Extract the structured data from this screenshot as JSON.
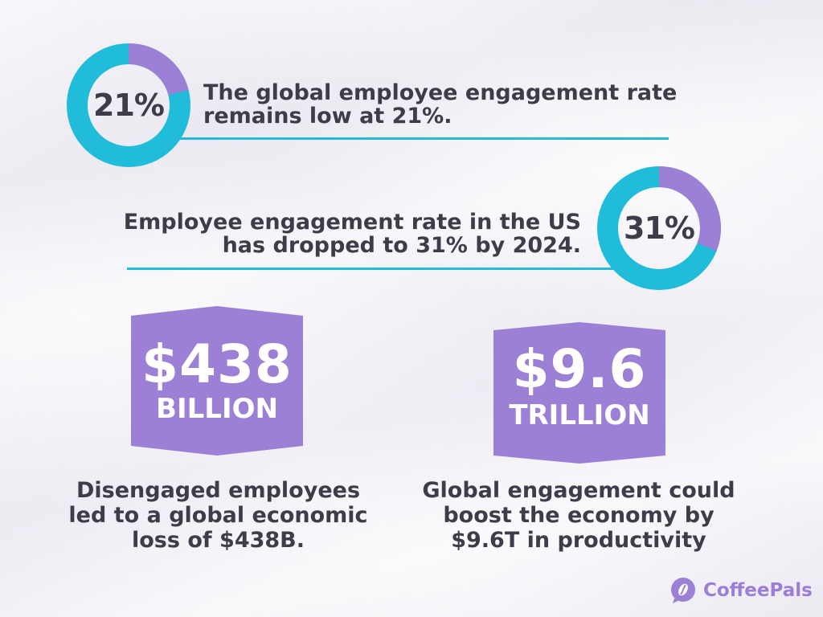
{
  "stat1": {
    "value_label": "21%",
    "percent": 21,
    "text": "The global employee engagement rate remains low at 21%."
  },
  "stat2": {
    "value_label": "31%",
    "percent": 31,
    "text": "Employee engagement rate in the US has dropped to 31% by 2024."
  },
  "badge1": {
    "amount": "$438",
    "unit": "BILLION",
    "caption": "Disengaged employees led to a global economic loss of $438B."
  },
  "badge2": {
    "amount": "$9.6",
    "unit": "TRILLION",
    "caption": "Global engagement could boost the economy by $9.6T in productivity"
  },
  "brand": {
    "name": "CoffeePals"
  },
  "colors": {
    "teal": "#20bcd9",
    "purple": "#9b80d6",
    "text": "#3d3d4a",
    "logo": "#9b7fd6"
  },
  "icons": {
    "logo": "coffeepals-logo-icon"
  }
}
